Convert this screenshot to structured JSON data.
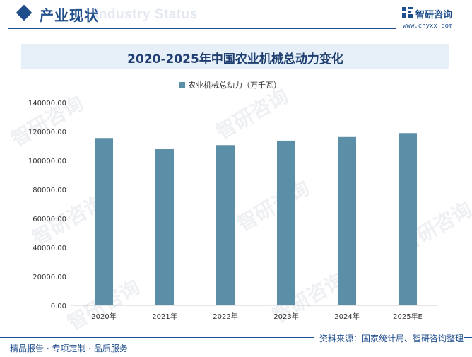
{
  "header": {
    "section_title": "产业现状",
    "section_title_shadow": "Industry Status",
    "brand_name": "智研咨询",
    "brand_url": "www.chyxx.com"
  },
  "watermark": "智研咨询",
  "chart_data": {
    "type": "bar",
    "title": "2020-2025年中国农业机械总动力变化",
    "categories": [
      "2020年",
      "2021年",
      "2022年",
      "2023年",
      "2024年",
      "2025年E"
    ],
    "series": [
      {
        "name": "农业机械总动力（万千瓦）",
        "values": [
          115500,
          107800,
          110600,
          113700,
          116200,
          118900
        ]
      }
    ],
    "ylim": [
      0,
      140000
    ],
    "yticks": [
      0,
      20000,
      40000,
      60000,
      80000,
      100000,
      120000,
      140000
    ],
    "ytick_labels": [
      "0.00",
      "20000.00",
      "40000.00",
      "60000.00",
      "80000.00",
      "100000.00",
      "120000.00",
      "140000.00"
    ],
    "xlabel": "",
    "ylabel": "",
    "legend": "top-center",
    "grid": false,
    "bar_color": "#5b8fa8"
  },
  "footer": {
    "left": "精品报告 · 专项定制 · 品质服务",
    "source": "资料来源：国家统计局、智研咨询整理"
  }
}
